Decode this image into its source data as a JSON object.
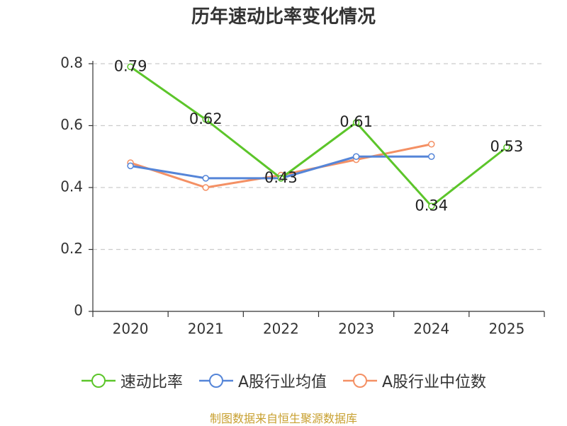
{
  "chart_data": {
    "type": "line",
    "title": "历年速动比率变化情况",
    "categories": [
      "2020",
      "2021",
      "2022",
      "2023",
      "2024",
      "2025"
    ],
    "y_ticks": [
      "0",
      "0.2",
      "0.4",
      "0.6",
      "0.8"
    ],
    "ylim": [
      0,
      0.8
    ],
    "grid": true,
    "legend_position": "bottom",
    "series": [
      {
        "name": "速动比率",
        "color": "#5cc52a",
        "values": [
          0.79,
          0.62,
          0.43,
          0.61,
          0.34,
          0.53
        ],
        "labels": [
          "0.79",
          "0.62",
          "0.43",
          "0.61",
          "0.34",
          "0.53"
        ]
      },
      {
        "name": "A股行业均值",
        "color": "#5585d8",
        "values": [
          0.47,
          0.43,
          0.43,
          0.5,
          0.5,
          null
        ]
      },
      {
        "name": "A股行业中位数",
        "color": "#f49064",
        "values": [
          0.48,
          0.4,
          0.44,
          0.49,
          0.54,
          null
        ]
      }
    ]
  },
  "source": "制图数据来自恒生聚源数据库"
}
